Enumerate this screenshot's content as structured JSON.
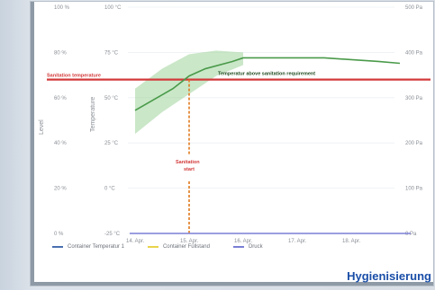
{
  "chart_data": {
    "type": "line",
    "x_categories": [
      "14. Apr.",
      "15. Apr.",
      "16. Apr.",
      "17. Apr.",
      "18. Apr."
    ],
    "y_left_level": {
      "label": "Level",
      "ticks": [
        "0 %",
        "20 %",
        "40 %",
        "60 %",
        "80 %",
        "100 %"
      ],
      "ylim": [
        0,
        100
      ]
    },
    "y_left_temperature": {
      "label": "Temperature",
      "ticks": [
        "-25 °C",
        "0 °C",
        "25 °C",
        "50 °C",
        "75 °C",
        "100 °C"
      ],
      "ylim": [
        -25,
        100
      ]
    },
    "y_right_pressure": {
      "ticks": [
        "0 Pa",
        "100 Pa",
        "200 Pa",
        "300 Pa",
        "400 Pa",
        "500 Pa"
      ],
      "ylim": [
        0,
        500
      ]
    },
    "series": [
      {
        "name": "Container Temperatur 1",
        "color": "#4a9a4a",
        "axis": "temperature",
        "x": [
          14.0,
          14.7,
          15.0,
          15.3,
          15.8,
          16.0,
          16.5,
          17.0,
          17.5,
          18.0,
          18.5,
          18.9
        ],
        "y": [
          43,
          55,
          62,
          66,
          70,
          72,
          72,
          72,
          72,
          71,
          70,
          69
        ]
      },
      {
        "name": "Container Füllstand",
        "color": "#e8d44a",
        "axis": "level"
      },
      {
        "name": "Druck",
        "color": "#7a7fd6",
        "axis": "pressure",
        "x": [
          13.9,
          19.1
        ],
        "y": [
          0,
          0
        ]
      }
    ],
    "band": {
      "x": [
        14.0,
        14.5,
        15.0,
        15.5,
        16.0
      ],
      "low": [
        30,
        42,
        52,
        62,
        68
      ],
      "high": [
        55,
        66,
        74,
        76,
        75
      ]
    },
    "threshold": {
      "label": "Sanitation temperature",
      "value_celsius": 60,
      "color": "#d33a3a"
    },
    "annotation_reached": "Temperatur above sanitation requirement",
    "marker": {
      "label_line1": "Sanitation",
      "label_line2": "start",
      "x": 15.0,
      "color": "#e07a1e"
    },
    "grid": true,
    "legend_position": "bottom"
  },
  "brand": "Hygienisierung"
}
